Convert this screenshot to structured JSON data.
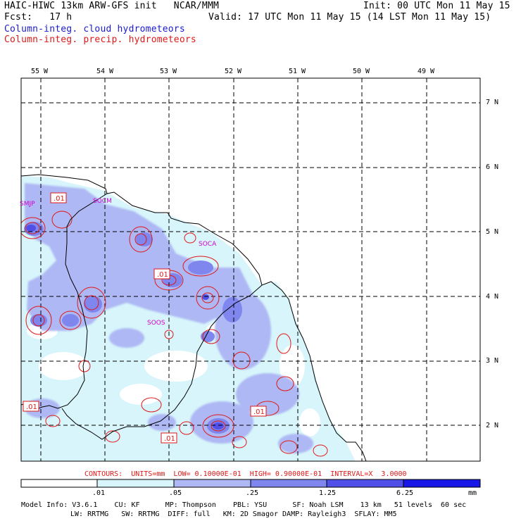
{
  "header": {
    "title": "HAIC-HIWC 13km ARW-GFS init   NCAR/MMM",
    "init": "Init: 00 UTC Mon 11 May 15",
    "fcst": "Fcst:   17 h",
    "valid": "Valid: 17 UTC Mon 11 May 15 (14 LST Mon 11 May 15)",
    "field_cloud": "Column-integ. cloud hydrometeors",
    "field_precip": "Column-integ. precip. hydrometeors"
  },
  "colors": {
    "cloud_field": "#1a1ad6",
    "precip_contour": "#e01818",
    "shade_1": "#d7f5fb",
    "shade_2": "#aeb8f4",
    "shade_3": "#7f86ee",
    "shade_4": "#5050e8",
    "shade_5": "#1818e6"
  },
  "map": {
    "lon_labels": [
      "55 W",
      "54 W",
      "53 W",
      "52 W",
      "51 W",
      "50 W",
      "49 W"
    ],
    "lat_labels": [
      "7 N",
      "6 N",
      "5 N",
      "4 N",
      "3 N",
      "2 N"
    ],
    "stations": [
      "SMJP",
      "SOCM",
      "SOCA",
      "SOOS"
    ],
    "contour_labels": [
      ".01",
      ".01",
      ".01",
      ".01",
      ".01"
    ]
  },
  "colorbar": {
    "contours_line": "CONTOURS:  UNITS=mm  LOW= 0.10000E-01  HIGH= 0.90000E-01  INTERVAL=X  3.0000",
    "tick_labels": [
      ".01",
      ".05",
      ".25",
      "1.25",
      "6.25"
    ],
    "units": "mm"
  },
  "footer": {
    "line1": "Model Info: V3.6.1    CU: KF      MP: Thompson    PBL: YSU      SF: Noah LSM    13 km   51 levels  60 sec",
    "line2": "LW: RRTMG   SW: RRTMG  DIFF: full   KM: 2D Smagor DAMP: Rayleigh3  SFLAY: MM5"
  }
}
